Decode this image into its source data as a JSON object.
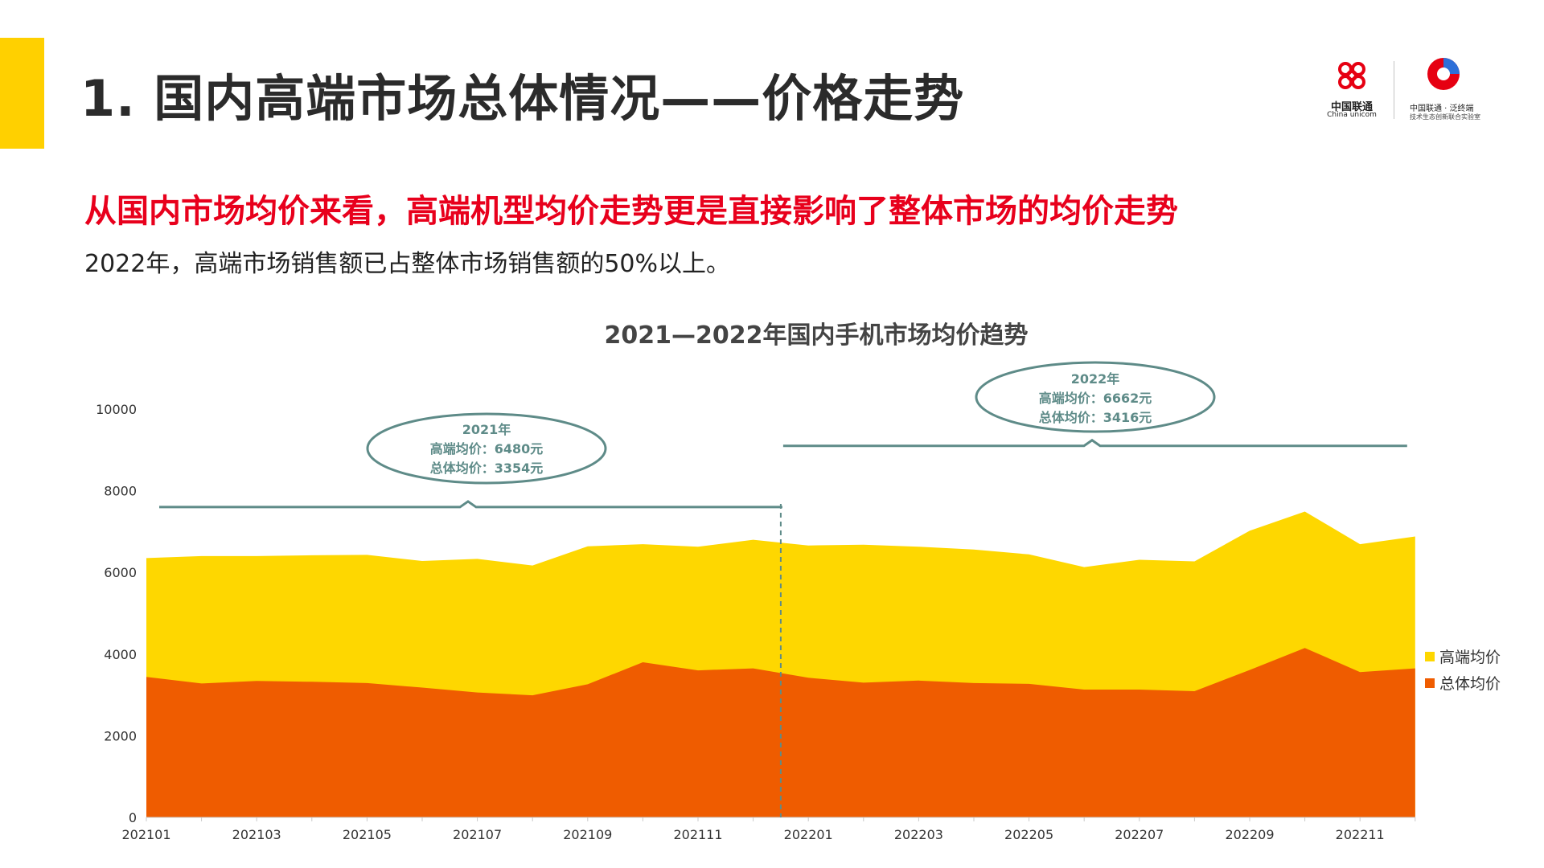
{
  "colors": {
    "accent": "#ffd000",
    "high_end": "#fed700",
    "overall": "#ef5c00",
    "annotation": "#5e8b88",
    "headline": "#e8001c"
  },
  "header": {
    "title": "1. 国内高端市场总体情况——价格走势",
    "logo_cu_text": "中国联通",
    "logo_cu_sub": "China unicom",
    "logo_lab_line1": "中国联通 · 泛终端",
    "logo_lab_line2": "技术生态创新联合实验室"
  },
  "headline": "从国内市场均价来看，高端机型均价走势更是直接影响了整体市场的均价走势",
  "subtext": "2022年，高端市场销售额已占整体市场销售额的50%以上。",
  "chart_data": {
    "type": "area",
    "title": "2021—2022年国内手机市场均价趋势",
    "x": [
      "202101",
      "202102",
      "202103",
      "202104",
      "202105",
      "202106",
      "202107",
      "202108",
      "202109",
      "202110",
      "202111",
      "202112",
      "202201",
      "202202",
      "202203",
      "202204",
      "202205",
      "202206",
      "202207",
      "202208",
      "202209",
      "202210",
      "202211",
      "202212"
    ],
    "x_tick_labels": [
      "202101",
      "202103",
      "202105",
      "202107",
      "202109",
      "202111",
      "202201",
      "202203",
      "202205",
      "202207",
      "202209",
      "202211"
    ],
    "y_ticks": [
      "0",
      "2000",
      "4000",
      "6000",
      "8000",
      "10000"
    ],
    "ylim": [
      0,
      10000
    ],
    "series": [
      {
        "name": "高端均价",
        "values": [
          6350,
          6400,
          6400,
          6420,
          6430,
          6280,
          6330,
          6170,
          6640,
          6690,
          6630,
          6800,
          6660,
          6680,
          6630,
          6560,
          6440,
          6130,
          6310,
          6270,
          7020,
          7490,
          6690,
          6880
        ]
      },
      {
        "name": "总体均价",
        "values": [
          3440,
          3280,
          3340,
          3320,
          3290,
          3180,
          3060,
          2990,
          3260,
          3800,
          3600,
          3650,
          3420,
          3300,
          3350,
          3290,
          3270,
          3130,
          3130,
          3090,
          3610,
          4150,
          3560,
          3650
        ]
      }
    ],
    "annotations": [
      {
        "year": "2021年",
        "high": "高端均价：6480元",
        "overall": "总体均价：3354元"
      },
      {
        "year": "2022年",
        "high": "高端均价：6662元",
        "overall": "总体均价：3416元"
      }
    ],
    "legend_position": "right",
    "grid": false
  }
}
